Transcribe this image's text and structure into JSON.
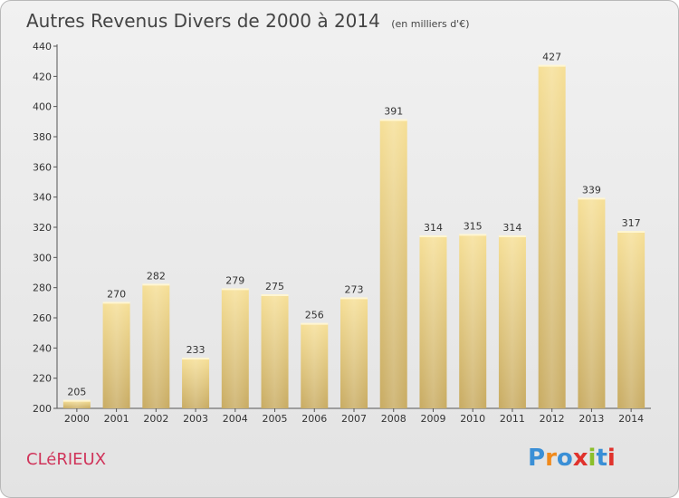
{
  "title": "Autres Revenus Divers de 2000 à 2014",
  "subtitle": "(en milliers d'€)",
  "place": "CLéRIEUX",
  "logo": {
    "letters": [
      "P",
      "r",
      "o",
      "x",
      "i",
      "t",
      "i"
    ],
    "colors": [
      "#3a8fd6",
      "#f08a1c",
      "#3a8fd6",
      "#e0322c",
      "#8bbf2a",
      "#3a8fd6",
      "#e0322c"
    ]
  },
  "chart_data": {
    "type": "bar",
    "title": "Autres Revenus Divers de 2000 à 2014",
    "categories": [
      "2000",
      "2001",
      "2002",
      "2003",
      "2004",
      "2005",
      "2006",
      "2007",
      "2008",
      "2009",
      "2010",
      "2011",
      "2012",
      "2013",
      "2014"
    ],
    "values": [
      205,
      270,
      282,
      233,
      279,
      275,
      256,
      273,
      391,
      314,
      315,
      314,
      427,
      339,
      317
    ],
    "ylim": [
      200,
      440
    ],
    "yticks": [
      200,
      220,
      240,
      260,
      280,
      300,
      320,
      340,
      360,
      380,
      400,
      420,
      440
    ],
    "grid": false,
    "bar_color": "#e9cf80"
  }
}
